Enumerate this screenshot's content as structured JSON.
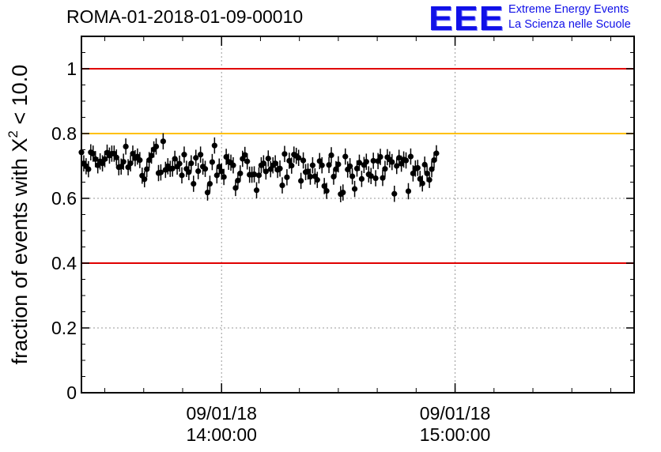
{
  "header": {
    "title": "ROMA-01-2018-01-09-00010",
    "logo_mark": "EEE",
    "logo_line1": "Extreme Energy Events",
    "logo_line2": "La Scienza nelle Scuole"
  },
  "chart_data": {
    "type": "scatter",
    "title": "ROMA-01-2018-01-09-00010",
    "ylabel_prefix": "fraction of events with ",
    "ylabel_chi": "X",
    "ylabel_sup": "2",
    "ylabel_suffix": " < 10.0",
    "xlim_minutes": [
      -36,
      106
    ],
    "ylim": [
      0,
      1.1
    ],
    "grid": true,
    "y_ticks": [
      {
        "value": 0,
        "label": "0"
      },
      {
        "value": 0.2,
        "label": "0.2"
      },
      {
        "value": 0.4,
        "label": "0.4"
      },
      {
        "value": 0.6,
        "label": "0.6"
      },
      {
        "value": 0.8,
        "label": "0.8"
      },
      {
        "value": 1,
        "label": "1"
      }
    ],
    "x_ticks": [
      {
        "time": "09/01/18 14:00:00",
        "date": "09/01/18",
        "clock": "14:00:00",
        "value": 0
      },
      {
        "time": "09/01/18 15:00:00",
        "date": "09/01/18",
        "clock": "15:00:00",
        "value": 60
      }
    ],
    "x_minor_step": 10,
    "reference_lines": [
      {
        "y": 1.0,
        "color": "#e00000"
      },
      {
        "y": 0.8,
        "color": "#ffc000"
      },
      {
        "y": 0.4,
        "color": "#e00000"
      }
    ],
    "marker_color": "#000000",
    "series": [
      {
        "x_start_minutes": -36,
        "x_step_minutes": 0.6,
        "error": 0.025,
        "y": [
          0.742,
          0.708,
          0.699,
          0.69,
          0.742,
          0.738,
          0.721,
          0.702,
          0.714,
          0.708,
          0.721,
          0.741,
          0.732,
          0.738,
          0.738,
          0.726,
          0.696,
          0.698,
          0.713,
          0.76,
          0.696,
          0.708,
          0.738,
          0.724,
          0.729,
          0.718,
          0.67,
          0.659,
          0.69,
          0.718,
          0.732,
          0.751,
          0.76,
          0.678,
          0.68,
          0.776,
          0.688,
          0.699,
          0.691,
          0.692,
          0.722,
          0.698,
          0.707,
          0.671,
          0.735,
          0.691,
          0.681,
          0.708,
          0.645,
          0.725,
          0.684,
          0.735,
          0.698,
          0.691,
          0.618,
          0.645,
          0.712,
          0.763,
          0.671,
          0.698,
          0.683,
          0.666,
          0.728,
          0.713,
          0.71,
          0.702,
          0.632,
          0.655,
          0.677,
          0.722,
          0.734,
          0.714,
          0.673,
          0.673,
          0.674,
          0.625,
          0.671,
          0.702,
          0.708,
          0.683,
          0.723,
          0.69,
          0.702,
          0.708,
          0.688,
          0.692,
          0.64,
          0.737,
          0.665,
          0.716,
          0.701,
          0.735,
          0.731,
          0.725,
          0.654,
          0.717,
          0.681,
          0.683,
          0.667,
          0.702,
          0.668,
          0.657,
          0.715,
          0.702,
          0.638,
          0.623,
          0.703,
          0.733,
          0.667,
          0.69,
          0.705,
          0.613,
          0.618,
          0.729,
          0.689,
          0.699,
          0.668,
          0.629,
          0.692,
          0.71,
          0.66,
          0.703,
          0.713,
          0.674,
          0.669,
          0.716,
          0.662,
          0.715,
          0.728,
          0.663,
          0.691,
          0.727,
          0.72,
          0.712,
          0.614,
          0.7,
          0.725,
          0.707,
          0.72,
          0.717,
          0.622,
          0.729,
          0.677,
          0.692,
          0.694,
          0.66,
          0.646,
          0.704,
          0.677,
          0.657,
          0.69,
          0.718,
          0.739
        ]
      }
    ]
  }
}
